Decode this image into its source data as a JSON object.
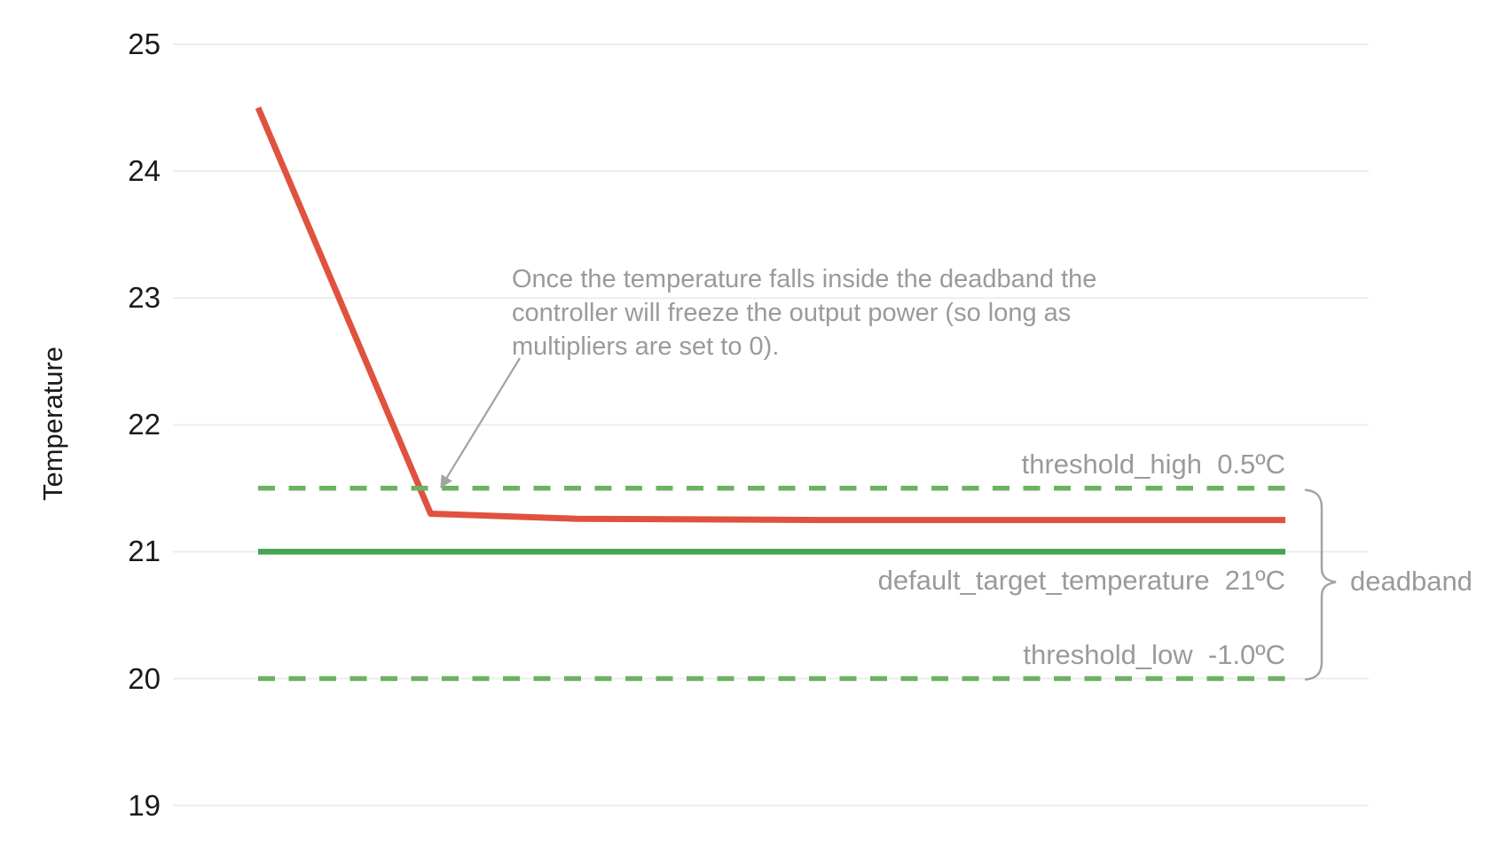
{
  "figure": {
    "background_color": "#ffffff",
    "text_color_primary": "#1a1a1a",
    "text_color_muted": "#9a9a9a",
    "gridline_color": "#ededed",
    "arrow_brace_color": "#a3a3a3"
  },
  "chart_data": {
    "type": "line",
    "title": "",
    "xlabel": "",
    "ylabel": "Temperature",
    "ylim": [
      18.6,
      25.35
    ],
    "yticks": [
      25,
      24,
      23,
      22,
      21,
      20,
      19
    ],
    "x_range": [
      0,
      1
    ],
    "x_axis_visible": false,
    "grid": "horizontal",
    "legend_position": "none",
    "series": [
      {
        "name": "temperature",
        "color": "#E0523F",
        "line_style": "solid",
        "stroke_width": 7,
        "points": [
          [
            0,
            24.5
          ],
          [
            0.168,
            21.3
          ],
          [
            0.31,
            21.26
          ],
          [
            0.55,
            21.25
          ],
          [
            1,
            21.25
          ]
        ]
      },
      {
        "name": "default_target_temperature",
        "color": "#47A353",
        "line_style": "solid",
        "stroke_width": 6.5,
        "value": 21,
        "points": [
          [
            0,
            21
          ],
          [
            1,
            21
          ]
        ]
      },
      {
        "name": "threshold_high",
        "color": "#6DB163",
        "line_style": "dashed",
        "stroke_width": 5.5,
        "value": 21.5,
        "points": [
          [
            0,
            21.5
          ],
          [
            1,
            21.5
          ]
        ]
      },
      {
        "name": "threshold_low",
        "color": "#6DB163",
        "line_style": "dashed",
        "stroke_width": 5.5,
        "value": 20,
        "points": [
          [
            0,
            20
          ],
          [
            1,
            20
          ]
        ]
      }
    ],
    "deadband_region": {
      "from_value": 20,
      "to_value": 21.5,
      "label": "deadband"
    }
  },
  "labels": {
    "threshold_high": "threshold_high  0.5ºC",
    "default_target_temperature": "default_target_temperature  21ºC",
    "threshold_low": "threshold_low  -1.0ºC",
    "deadband": "deadband"
  },
  "annotation": {
    "lines": [
      "Once the temperature falls inside the deadband the",
      "controller will freeze the output power (so long as",
      "multipliers are set to 0)."
    ]
  }
}
